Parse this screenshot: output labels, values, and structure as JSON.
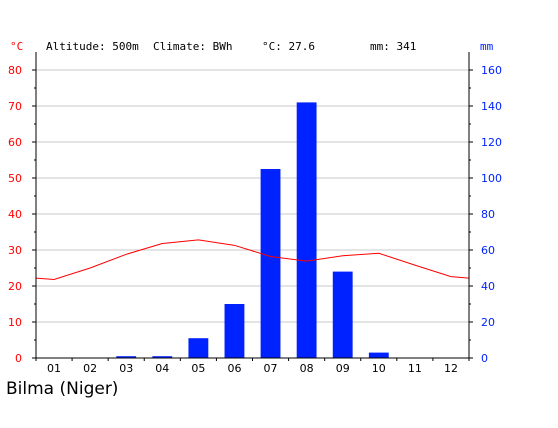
{
  "header": {
    "temp_unit": "°C",
    "altitude_label": "Altitude: 500m",
    "climate_label": "Climate: BWh",
    "temp_annual": "°C: 27.6",
    "precip_annual": "mm: 341",
    "precip_unit": "mm"
  },
  "caption": "Bilma (Niger)",
  "colors": {
    "temperature": "#ff0000",
    "precipitation": "#0022ff",
    "axis": "#000000",
    "grid": "#c8c8c8",
    "month_text": "#000000"
  },
  "chart_data": {
    "type": "bar+line",
    "categories": [
      "01",
      "02",
      "03",
      "04",
      "05",
      "06",
      "07",
      "08",
      "09",
      "10",
      "11",
      "12"
    ],
    "series": [
      {
        "kind": "bar",
        "axis": "right",
        "unit": "mm",
        "values": [
          0,
          0,
          1,
          1,
          11,
          30,
          105,
          142,
          48,
          3,
          0,
          0
        ]
      },
      {
        "kind": "line",
        "axis": "left",
        "unit": "°C",
        "values": [
          21.8,
          25.0,
          28.8,
          31.8,
          32.8,
          31.3,
          28.2,
          26.9,
          28.4,
          29.1,
          25.8,
          22.6
        ]
      }
    ],
    "left_axis": {
      "ylim": [
        0,
        80
      ],
      "ticks": [
        "0",
        "10",
        "20",
        "30",
        "40",
        "50",
        "60",
        "70",
        "80"
      ]
    },
    "right_axis": {
      "ylim": [
        0,
        160
      ],
      "ticks": [
        "0",
        "20",
        "40",
        "60",
        "80",
        "100",
        "120",
        "140",
        "160"
      ]
    },
    "grid": true
  }
}
